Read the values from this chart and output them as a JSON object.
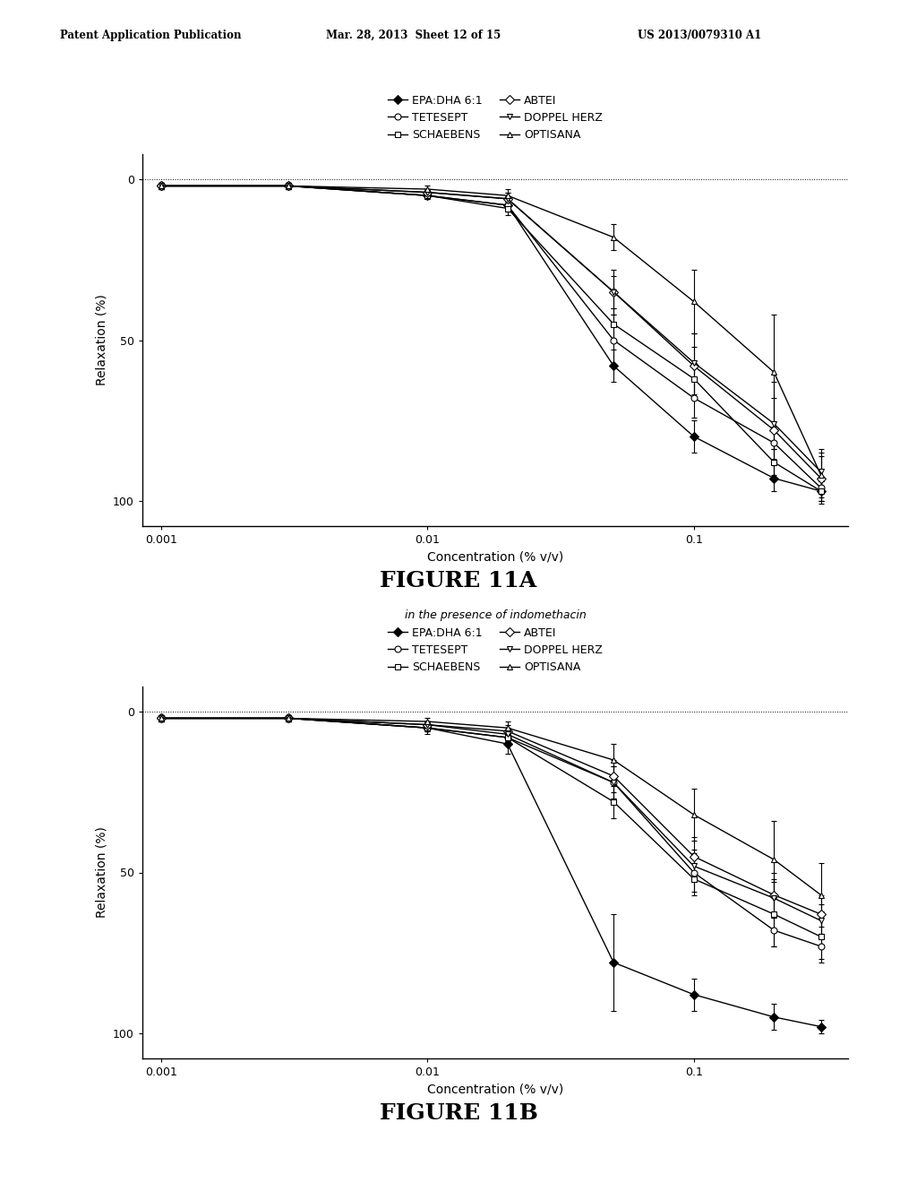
{
  "header_left": "Patent Application Publication",
  "header_mid": "Mar. 28, 2013  Sheet 12 of 15",
  "header_right": "US 2013/0079310 A1",
  "fig11a_title": "FIGURE 11A",
  "fig11b_title": "FIGURE 11B",
  "fig11b_subtitle": "in the presence of indomethacin",
  "x_values": [
    0.001,
    0.003,
    0.01,
    0.02,
    0.05,
    0.1,
    0.2,
    0.3
  ],
  "legend_entries": [
    {
      "label": "EPA:DHA 6:1",
      "marker": "D",
      "filled": true
    },
    {
      "label": "TETESEPT",
      "marker": "o",
      "filled": false
    },
    {
      "label": "SCHAEBENS",
      "marker": "s",
      "filled": false
    },
    {
      "label": "ABTEI",
      "marker": "D",
      "filled": false
    },
    {
      "label": "DOPPEL HERZ",
      "marker": "v",
      "filled": false
    },
    {
      "label": "OPTISANA",
      "marker": "^",
      "filled": false
    }
  ],
  "fig11a": {
    "series": [
      {
        "name": "EPA:DHA 6:1",
        "y": [
          -2,
          -2,
          -5,
          -8,
          -58,
          -80,
          -93,
          -97
        ],
        "yerr": [
          1,
          1,
          1,
          2,
          5,
          5,
          4,
          3
        ],
        "marker": "D",
        "filled": true
      },
      {
        "name": "TETESEPT",
        "y": [
          -2,
          -2,
          -5,
          -8,
          -50,
          -68,
          -82,
          -96
        ],
        "yerr": [
          1,
          1,
          1,
          2,
          8,
          6,
          5,
          3
        ],
        "marker": "o",
        "filled": false
      },
      {
        "name": "SCHAEBENS",
        "y": [
          -2,
          -2,
          -5,
          -9,
          -45,
          -62,
          -88,
          -97
        ],
        "yerr": [
          1,
          1,
          1,
          2,
          5,
          5,
          4,
          3
        ],
        "marker": "s",
        "filled": false
      },
      {
        "name": "ABTEI",
        "y": [
          -2,
          -2,
          -4,
          -6,
          -35,
          -58,
          -78,
          -93
        ],
        "yerr": [
          1,
          1,
          1,
          2,
          7,
          10,
          15,
          8
        ],
        "marker": "D",
        "filled": false
      },
      {
        "name": "DOPPEL HERZ",
        "y": [
          -2,
          -2,
          -4,
          -6,
          -35,
          -57,
          -76,
          -91
        ],
        "yerr": [
          1,
          1,
          1,
          2,
          5,
          5,
          8,
          5
        ],
        "marker": "v",
        "filled": false
      },
      {
        "name": "OPTISANA",
        "y": [
          -2,
          -2,
          -3,
          -5,
          -18,
          -38,
          -60,
          -92
        ],
        "yerr": [
          1,
          1,
          1,
          2,
          4,
          10,
          18,
          8
        ],
        "marker": "^",
        "filled": false
      }
    ]
  },
  "fig11b": {
    "series": [
      {
        "name": "EPA:DHA 6:1",
        "y": [
          -2,
          -2,
          -5,
          -10,
          -78,
          -88,
          -95,
          -98
        ],
        "yerr": [
          1,
          1,
          2,
          3,
          15,
          5,
          4,
          2
        ],
        "marker": "D",
        "filled": true
      },
      {
        "name": "TETESEPT",
        "y": [
          -2,
          -2,
          -5,
          -8,
          -22,
          -50,
          -68,
          -73
        ],
        "yerr": [
          1,
          1,
          1,
          2,
          5,
          6,
          5,
          4
        ],
        "marker": "o",
        "filled": false
      },
      {
        "name": "SCHAEBENS",
        "y": [
          -2,
          -2,
          -5,
          -8,
          -28,
          -52,
          -63,
          -70
        ],
        "yerr": [
          1,
          1,
          1,
          2,
          5,
          5,
          10,
          8
        ],
        "marker": "s",
        "filled": false
      },
      {
        "name": "ABTEI",
        "y": [
          -2,
          -2,
          -4,
          -6,
          -20,
          -45,
          -57,
          -63
        ],
        "yerr": [
          1,
          1,
          1,
          2,
          5,
          6,
          7,
          6
        ],
        "marker": "D",
        "filled": false
      },
      {
        "name": "DOPPEL HERZ",
        "y": [
          -2,
          -2,
          -4,
          -7,
          -22,
          -48,
          -58,
          -65
        ],
        "yerr": [
          1,
          1,
          1,
          2,
          5,
          5,
          6,
          5
        ],
        "marker": "v",
        "filled": false
      },
      {
        "name": "OPTISANA",
        "y": [
          -2,
          -2,
          -3,
          -5,
          -15,
          -32,
          -46,
          -57
        ],
        "yerr": [
          1,
          1,
          1,
          2,
          5,
          8,
          12,
          10
        ],
        "marker": "^",
        "filled": false
      }
    ]
  },
  "ylim": [
    -108,
    8
  ],
  "yticks": [
    0,
    -50,
    -100
  ],
  "ytick_labels": [
    "0",
    "50",
    "100"
  ],
  "xlabel": "Concentration (% v/v)",
  "ylabel": "Relaxation (%)",
  "background_color": "#ffffff"
}
